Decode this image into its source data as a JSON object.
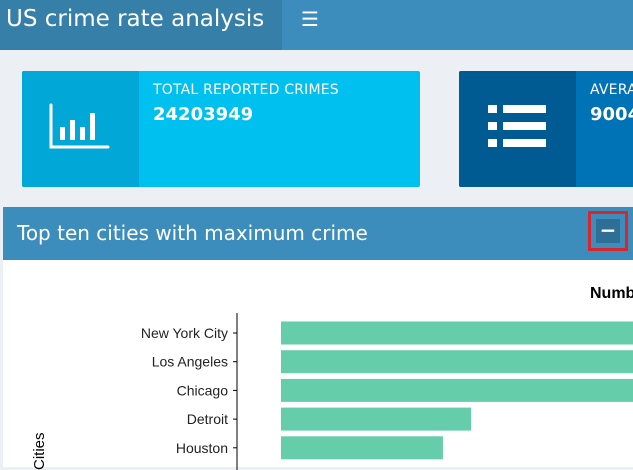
{
  "header": {
    "title": "US crime rate analysis",
    "menu_icon": "hamburger-icon"
  },
  "info_boxes": [
    {
      "label": "TOTAL REPORTED CRIMES",
      "value": "24203949",
      "icon": "bar-chart-icon",
      "color": "#00c0ef"
    },
    {
      "label": "AVERA",
      "value": "9004",
      "icon": "list-icon",
      "color": "#0073b7"
    }
  ],
  "panel": {
    "title": "Top ten cities with maximum crime",
    "collapse_icon": "minus-icon"
  },
  "chart_data": {
    "type": "bar",
    "orientation": "horizontal",
    "title": "Numb",
    "ylabel": "Cities",
    "bar_color": "#66cdaa",
    "categories": [
      "New York City",
      "Los Angeles",
      "Chicago",
      "Detroit",
      "Houston"
    ],
    "values": [
      100,
      100,
      100,
      54,
      46
    ]
  }
}
